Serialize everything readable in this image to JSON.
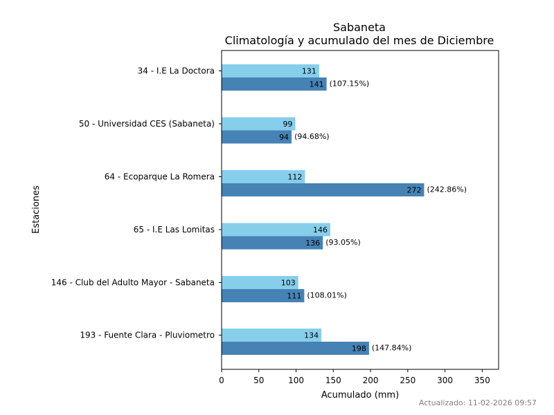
{
  "chart_data": {
    "type": "bar",
    "orientation": "horizontal",
    "title": "Sabaneta",
    "subtitle": "Climatología y acumulado del mes de Diciembre",
    "xlabel": "Acumulado (mm)",
    "ylabel": "Estaciones",
    "xlim": [
      0,
      372
    ],
    "xticks": [
      0,
      50,
      100,
      150,
      200,
      250,
      300,
      350
    ],
    "categories": [
      "34 - I.E La Doctora",
      "50 - Universidad CES (Sabaneta)",
      "64 - Ecoparque La Romera",
      "65 - I.E Las Lomitas",
      "146 - Club del Adulto Mayor - Sabaneta",
      "193 - Fuente Clara - Pluviometro"
    ],
    "series": [
      {
        "name": "Climatología",
        "color": "#87CEEB",
        "values": [
          131,
          99,
          112,
          146,
          103,
          134
        ]
      },
      {
        "name": "Acumulado",
        "color": "#4682B4",
        "values": [
          141,
          94,
          272,
          136,
          111,
          198
        ],
        "percent_labels": [
          "(107.15%)",
          "(94.68%)",
          "(242.86%)",
          "(93.05%)",
          "(108.01%)",
          "(147.84%)"
        ]
      }
    ],
    "grid": false,
    "legend": "none"
  },
  "footer": {
    "updated": "Actualizado: 11-02-2026 09:57"
  }
}
